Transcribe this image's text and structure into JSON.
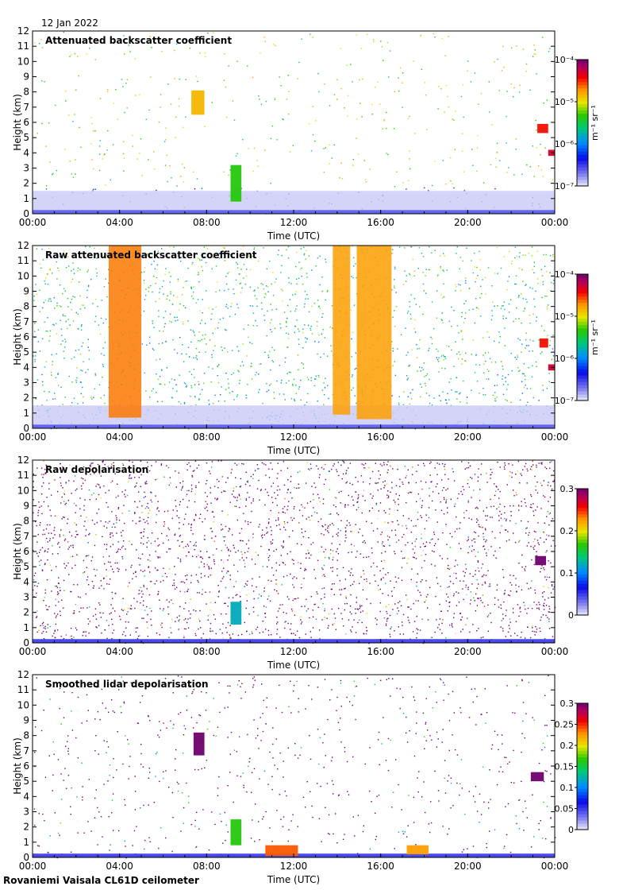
{
  "date": "12 Jan 2022",
  "footer": "Rovaniemi Vaisala CL61D ceilometer",
  "chart_data": [
    {
      "type": "heatmap",
      "title": "Attenuated backscatter coefficient",
      "xlabel": "Time (UTC)",
      "ylabel": "Height (km)",
      "x_ticks": [
        "00:00",
        "04:00",
        "08:00",
        "12:00",
        "16:00",
        "20:00",
        "00:00"
      ],
      "y_ticks": [
        0,
        1,
        2,
        3,
        4,
        5,
        6,
        7,
        8,
        9,
        10,
        11,
        12
      ],
      "xlim_hours": [
        0,
        24
      ],
      "ylim_km": [
        0,
        12
      ],
      "colorbar": {
        "scale": "log",
        "min": 1e-07,
        "max": 0.0001,
        "unit": "m⁻¹ sr⁻¹",
        "tick_labels": [
          "10⁻⁴",
          "10⁻⁵",
          "10⁻⁶",
          "10⁻⁷"
        ]
      },
      "features": [
        {
          "kind": "cloud",
          "t_start_h": 7.3,
          "t_end_h": 7.9,
          "h_min_km": 6.5,
          "h_max_km": 8.1,
          "level": 0.72
        },
        {
          "kind": "cloud",
          "t_start_h": 9.1,
          "t_end_h": 9.6,
          "h_min_km": 0.8,
          "h_max_km": 3.2,
          "level": 0.55
        },
        {
          "kind": "cloud",
          "t_start_h": 23.2,
          "t_end_h": 23.7,
          "h_min_km": 5.3,
          "h_max_km": 5.9,
          "level": 0.85
        },
        {
          "kind": "cloud",
          "t_start_h": 23.7,
          "t_end_h": 24.0,
          "h_min_km": 3.8,
          "h_max_km": 4.2,
          "level": 0.9
        }
      ]
    },
    {
      "type": "heatmap",
      "title": "Raw attenuated backscatter coefficient",
      "xlabel": "Time (UTC)",
      "ylabel": "Height (km)",
      "x_ticks": [
        "00:00",
        "04:00",
        "08:00",
        "12:00",
        "16:00",
        "20:00",
        "00:00"
      ],
      "y_ticks": [
        0,
        1,
        2,
        3,
        4,
        5,
        6,
        7,
        8,
        9,
        10,
        11,
        12
      ],
      "xlim_hours": [
        0,
        24
      ],
      "ylim_km": [
        0,
        12
      ],
      "colorbar": {
        "scale": "log",
        "min": 1e-07,
        "max": 0.0001,
        "unit": "m⁻¹ sr⁻¹",
        "tick_labels": [
          "10⁻⁴",
          "10⁻⁵",
          "10⁻⁶",
          "10⁻⁷"
        ]
      },
      "features": [
        {
          "kind": "high-noise-band",
          "t_start_h": 3.5,
          "t_end_h": 5.0,
          "h_min_km": 0.7,
          "h_max_km": 12,
          "level": 0.78
        },
        {
          "kind": "high-noise-band",
          "t_start_h": 13.8,
          "t_end_h": 14.6,
          "h_min_km": 0.9,
          "h_max_km": 12,
          "level": 0.75
        },
        {
          "kind": "high-noise-band",
          "t_start_h": 14.9,
          "t_end_h": 16.5,
          "h_min_km": 0.6,
          "h_max_km": 12,
          "level": 0.75
        },
        {
          "kind": "cloud",
          "t_start_h": 23.3,
          "t_end_h": 23.7,
          "h_min_km": 5.3,
          "h_max_km": 5.9,
          "level": 0.85
        },
        {
          "kind": "cloud",
          "t_start_h": 23.7,
          "t_end_h": 24.0,
          "h_min_km": 3.8,
          "h_max_km": 4.2,
          "level": 0.9
        }
      ]
    },
    {
      "type": "heatmap",
      "title": "Raw depolarisation",
      "xlabel": "Time (UTC)",
      "ylabel": "Height (km)",
      "x_ticks": [
        "00:00",
        "04:00",
        "08:00",
        "12:00",
        "16:00",
        "20:00",
        "00:00"
      ],
      "y_ticks": [
        0,
        1,
        2,
        3,
        4,
        5,
        6,
        7,
        8,
        9,
        10,
        11,
        12
      ],
      "xlim_hours": [
        0,
        24
      ],
      "ylim_km": [
        0,
        12
      ],
      "colorbar": {
        "scale": "linear",
        "min": 0,
        "max": 0.3,
        "tick_labels": [
          "0.3",
          "0.2",
          "0.1",
          "0"
        ]
      },
      "features": [
        {
          "kind": "cloud",
          "t_start_h": 9.1,
          "t_end_h": 9.6,
          "h_min_km": 1.2,
          "h_max_km": 2.7,
          "level": 0.4
        },
        {
          "kind": "cloud",
          "t_start_h": 23.1,
          "t_end_h": 23.6,
          "h_min_km": 5.1,
          "h_max_km": 5.7,
          "level": 1.0
        }
      ]
    },
    {
      "type": "heatmap",
      "title": "Smoothed lidar depolarisation",
      "xlabel": "Time (UTC)",
      "ylabel": "Height (km)",
      "x_ticks": [
        "00:00",
        "04:00",
        "08:00",
        "12:00",
        "16:00",
        "20:00",
        "00:00"
      ],
      "y_ticks": [
        0,
        1,
        2,
        3,
        4,
        5,
        6,
        7,
        8,
        9,
        10,
        11,
        12
      ],
      "xlim_hours": [
        0,
        24
      ],
      "ylim_km": [
        0,
        12
      ],
      "colorbar": {
        "scale": "linear",
        "min": 0,
        "max": 0.3,
        "tick_labels": [
          "0.3",
          "0.25",
          "0.2",
          "0.15",
          "0.1",
          "0.05",
          "0"
        ]
      },
      "features": [
        {
          "kind": "cloud",
          "t_start_h": 7.4,
          "t_end_h": 7.9,
          "h_min_km": 6.7,
          "h_max_km": 8.2,
          "level": 1.0
        },
        {
          "kind": "cloud",
          "t_start_h": 9.1,
          "t_end_h": 9.6,
          "h_min_km": 0.8,
          "h_max_km": 2.5,
          "level": 0.55
        },
        {
          "kind": "cloud",
          "t_start_h": 10.7,
          "t_end_h": 12.2,
          "h_min_km": 0.1,
          "h_max_km": 0.8,
          "level": 0.8
        },
        {
          "kind": "cloud",
          "t_start_h": 17.2,
          "t_end_h": 18.2,
          "h_min_km": 0.2,
          "h_max_km": 0.8,
          "level": 0.75
        },
        {
          "kind": "cloud",
          "t_start_h": 22.9,
          "t_end_h": 23.5,
          "h_min_km": 5.0,
          "h_max_km": 5.6,
          "level": 1.0
        }
      ]
    }
  ]
}
